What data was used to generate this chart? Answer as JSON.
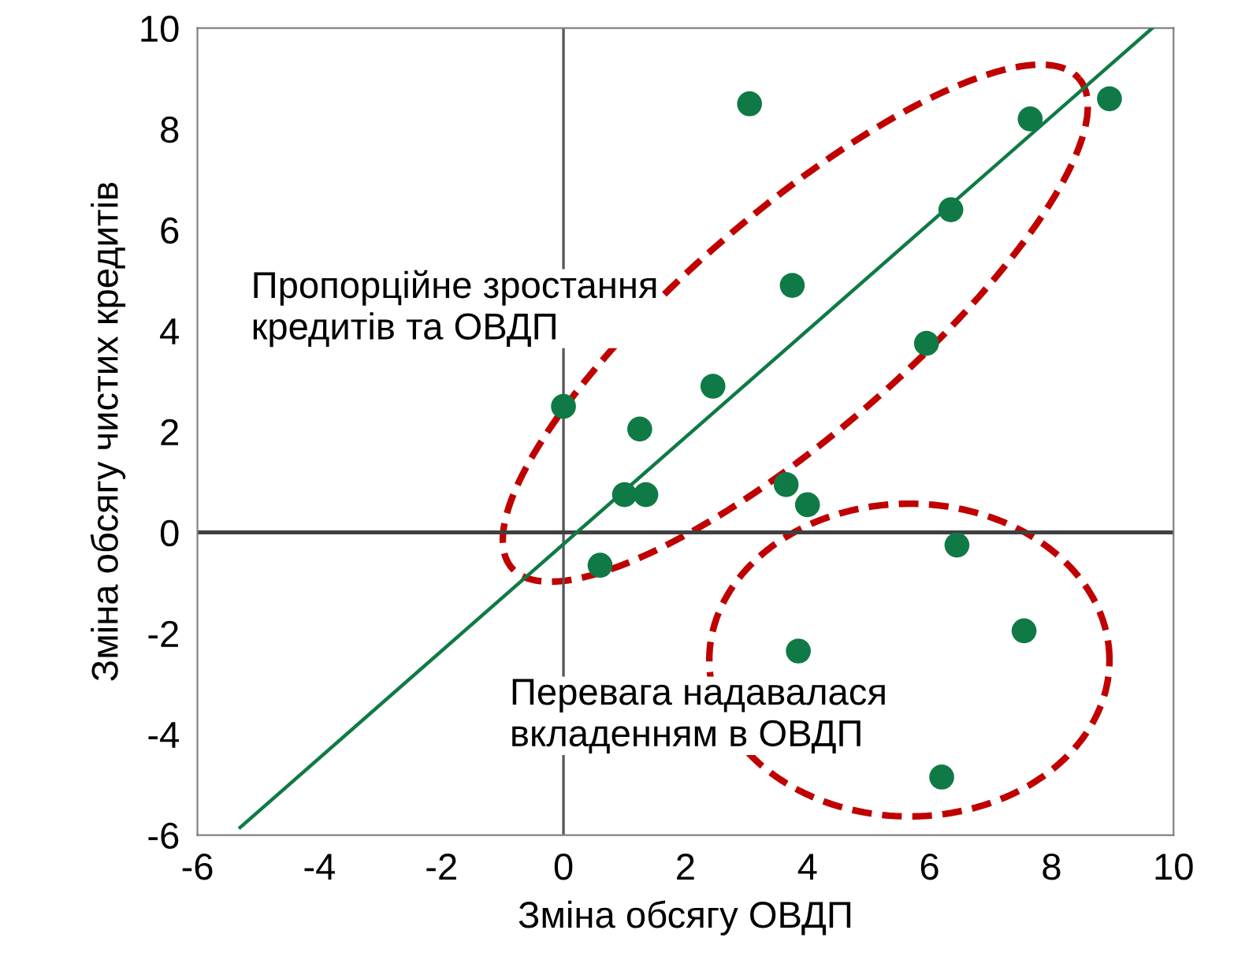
{
  "chart_data": {
    "type": "scatter",
    "xlabel": "Зміна обсягу ОВДП",
    "ylabel": "Зміна обсягу чистих кредитів",
    "series": [
      {
        "type": "scatter",
        "color": "#0f7a45",
        "marker": "circle",
        "x": [
          0.0,
          3.05,
          8.95,
          7.65,
          6.35,
          3.75,
          5.95,
          2.45,
          1.25,
          1.0,
          1.35,
          3.65,
          4.0,
          0.6,
          6.45,
          3.85,
          7.55,
          6.2
        ],
        "values": [
          2.5,
          8.5,
          8.6,
          8.2,
          6.4,
          4.9,
          3.75,
          2.9,
          2.05,
          0.75,
          0.75,
          0.95,
          0.55,
          -0.65,
          -0.25,
          -2.35,
          -1.95,
          -4.85
        ]
      },
      {
        "type": "line",
        "color": "#0f7a45",
        "marker": "none",
        "line_style": "solid",
        "x": [
          -5.3,
          9.65
        ],
        "values": [
          -5.85,
          10.0
        ]
      }
    ],
    "annotations": [
      "Пропорційне зростання\nкредитів та ОВДП",
      "Перевага надавалася\nвкладенням в ОВДП"
    ],
    "ref_lines": [
      {
        "axis": "x",
        "value": 0,
        "color": "#595959"
      },
      {
        "axis": "y",
        "value": 0,
        "color": "#404040"
      }
    ],
    "xlim": [
      -6,
      10
    ],
    "xticks": [
      -6,
      -4,
      -2,
      0,
      2,
      4,
      6,
      8,
      10
    ],
    "ylim": [
      -6,
      10
    ],
    "yticks": [
      -6,
      -4,
      -2,
      0,
      2,
      4,
      6,
      8,
      10
    ],
    "grid": false,
    "legend": false
  }
}
